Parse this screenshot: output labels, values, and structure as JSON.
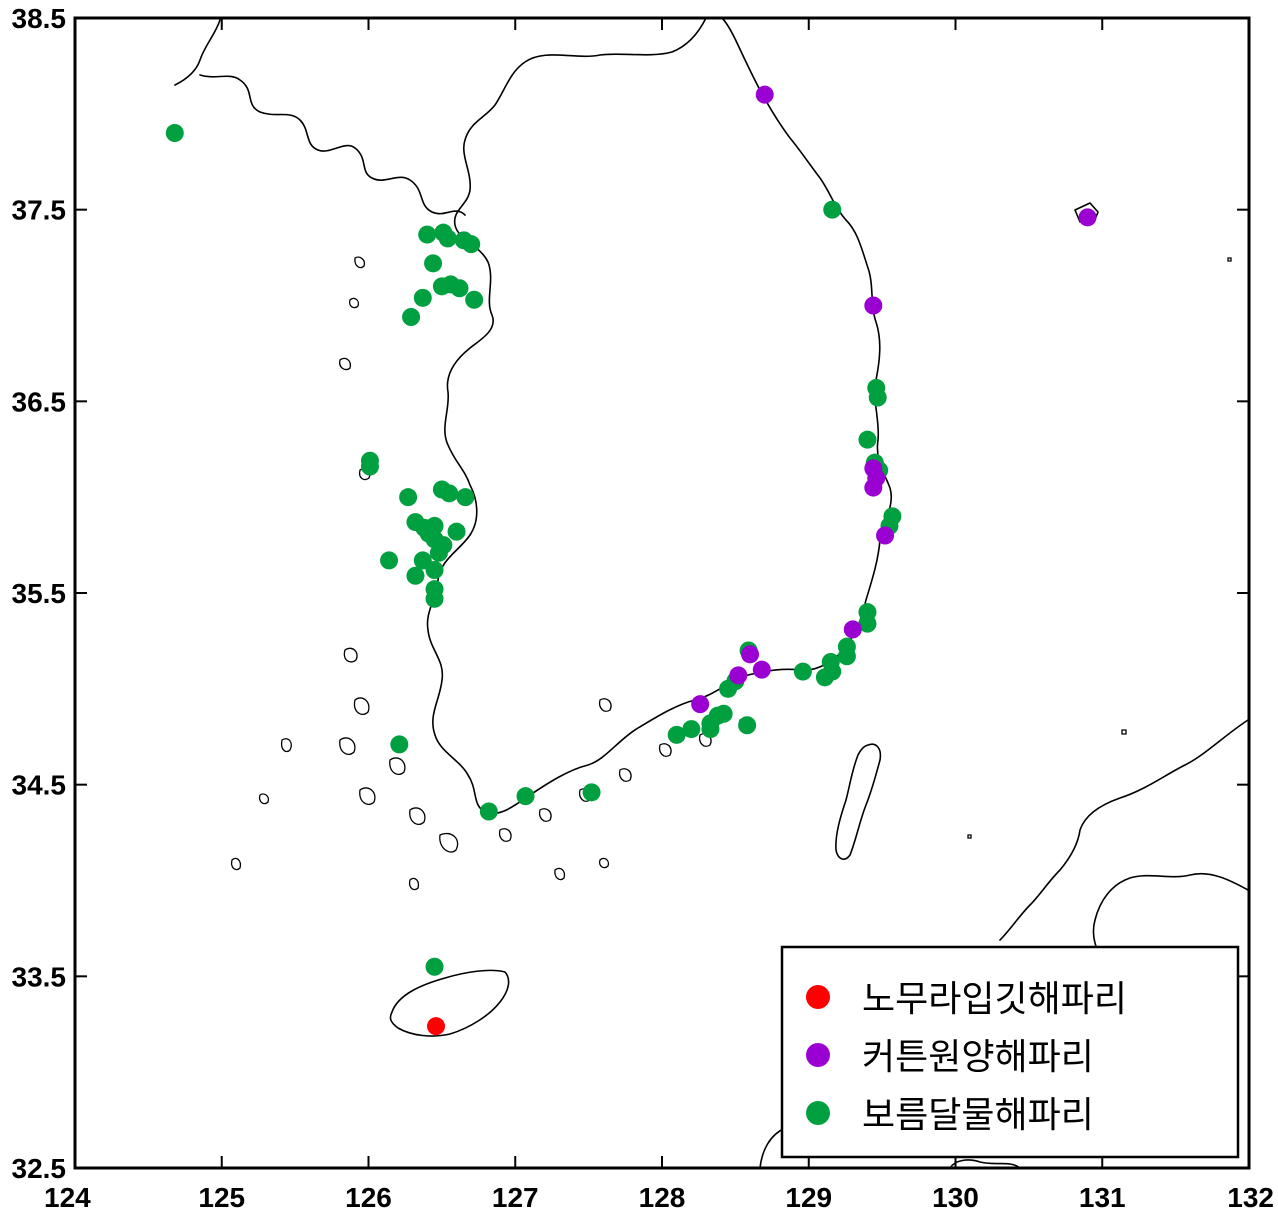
{
  "map": {
    "x_ticks": [
      "124",
      "125",
      "126",
      "127",
      "128",
      "129",
      "130",
      "131",
      "132"
    ],
    "y_ticks": [
      "32.5",
      "33.5",
      "34.5",
      "35.5",
      "36.5",
      "37.5",
      "38.5"
    ],
    "xlim": [
      124,
      132
    ],
    "ylim": [
      32.5,
      38.5
    ]
  },
  "legend": {
    "items": [
      {
        "label": "노무라입깃해파리",
        "color": "#ff0000"
      },
      {
        "label": "커튼원양해파리",
        "color": "#9b00d3"
      },
      {
        "label": "보름달물해파리",
        "color": "#00a040"
      }
    ]
  },
  "observations": {
    "노무라입깃해파리": [
      [
        126.46,
        33.24
      ]
    ],
    "커튼원양해파리": [
      [
        128.7,
        38.1
      ],
      [
        130.9,
        37.46
      ],
      [
        129.44,
        37.0
      ],
      [
        129.44,
        36.15
      ],
      [
        129.46,
        36.1
      ],
      [
        129.44,
        36.05
      ],
      [
        129.52,
        35.8
      ],
      [
        129.3,
        35.31
      ],
      [
        128.6,
        35.18
      ],
      [
        128.68,
        35.1
      ],
      [
        128.52,
        35.07
      ],
      [
        128.26,
        34.92
      ]
    ],
    "보름달물해파리": [
      [
        124.68,
        37.9
      ],
      [
        129.16,
        37.5
      ],
      [
        129.46,
        36.57
      ],
      [
        129.47,
        36.52
      ],
      [
        129.4,
        36.3
      ],
      [
        129.45,
        36.18
      ],
      [
        129.48,
        36.14
      ],
      [
        129.57,
        35.9
      ],
      [
        129.55,
        35.85
      ],
      [
        129.4,
        35.4
      ],
      [
        129.4,
        35.34
      ],
      [
        129.26,
        35.22
      ],
      [
        129.26,
        35.17
      ],
      [
        129.15,
        35.14
      ],
      [
        129.16,
        35.09
      ],
      [
        129.11,
        35.06
      ],
      [
        128.96,
        35.09
      ],
      [
        128.59,
        35.2
      ],
      [
        128.5,
        35.04
      ],
      [
        128.45,
        35.0
      ],
      [
        128.42,
        34.87
      ],
      [
        128.38,
        34.86
      ],
      [
        128.33,
        34.82
      ],
      [
        128.33,
        34.79
      ],
      [
        128.2,
        34.79
      ],
      [
        128.1,
        34.76
      ],
      [
        128.58,
        34.81
      ],
      [
        127.52,
        34.46
      ],
      [
        127.07,
        34.44
      ],
      [
        126.82,
        34.36
      ],
      [
        126.21,
        34.71
      ],
      [
        126.45,
        33.55
      ],
      [
        126.4,
        37.37
      ],
      [
        126.51,
        37.38
      ],
      [
        126.54,
        37.35
      ],
      [
        126.65,
        37.34
      ],
      [
        126.7,
        37.32
      ],
      [
        126.44,
        37.22
      ],
      [
        126.5,
        37.1
      ],
      [
        126.56,
        37.11
      ],
      [
        126.62,
        37.09
      ],
      [
        126.72,
        37.03
      ],
      [
        126.37,
        37.04
      ],
      [
        126.29,
        36.94
      ],
      [
        126.01,
        36.19
      ],
      [
        126.01,
        36.16
      ],
      [
        126.5,
        36.04
      ],
      [
        126.55,
        36.02
      ],
      [
        126.66,
        36.0
      ],
      [
        126.27,
        36.0
      ],
      [
        126.32,
        35.87
      ],
      [
        126.38,
        35.84
      ],
      [
        126.45,
        35.85
      ],
      [
        126.41,
        35.81
      ],
      [
        126.45,
        35.78
      ],
      [
        126.6,
        35.82
      ],
      [
        126.51,
        35.75
      ],
      [
        126.48,
        35.71
      ],
      [
        126.14,
        35.67
      ],
      [
        126.37,
        35.67
      ],
      [
        126.32,
        35.59
      ],
      [
        126.45,
        35.62
      ],
      [
        126.45,
        35.52
      ],
      [
        126.45,
        35.47
      ]
    ]
  }
}
